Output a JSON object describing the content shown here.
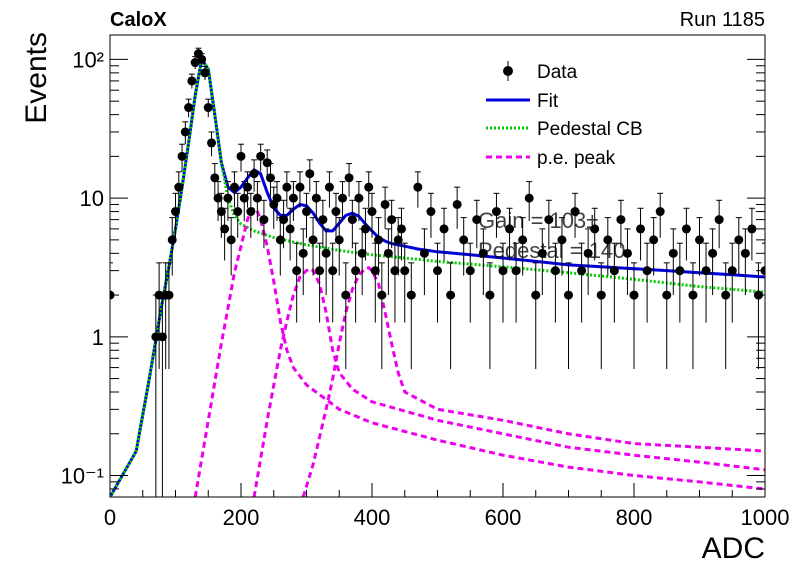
{
  "header": {
    "experiment": "CaloX",
    "run": "Run 1185"
  },
  "chart_data": {
    "type": "scatter",
    "xlabel": "ADC",
    "ylabel": "Events",
    "xlim": [
      0,
      1000
    ],
    "ylim": [
      0.07,
      150
    ],
    "y_scale": "log",
    "grid": false,
    "legend_position": "top-right",
    "x_ticks": [
      0,
      200,
      400,
      600,
      800,
      1000
    ],
    "y_ticks": [
      {
        "value": 0.1,
        "label": "10⁻¹"
      },
      {
        "value": 1,
        "label": "1"
      },
      {
        "value": 10,
        "label": "10"
      },
      {
        "value": 100,
        "label": "10²"
      }
    ],
    "legend": [
      {
        "label": "Data",
        "style": "marker",
        "color": "#000000"
      },
      {
        "label": "Fit",
        "style": "solid",
        "color": "#0000dd"
      },
      {
        "label": "Pedestal CB",
        "style": "dotted",
        "color": "#00cc00"
      },
      {
        "label": "p.e. peak",
        "style": "dashed",
        "color": "#ee00ee"
      }
    ],
    "fit_text": [
      "Gain = 103±",
      "Pedestal = 140"
    ],
    "series": [
      {
        "name": "Data",
        "type": "scatter",
        "color": "#000000",
        "x": [
          0,
          70,
          75,
          80,
          85,
          90,
          95,
          100,
          105,
          110,
          115,
          120,
          125,
          130,
          135,
          140,
          145,
          150,
          155,
          160,
          165,
          170,
          175,
          180,
          185,
          190,
          195,
          200,
          205,
          210,
          215,
          220,
          225,
          230,
          235,
          240,
          245,
          250,
          255,
          260,
          265,
          270,
          275,
          280,
          285,
          290,
          295,
          300,
          305,
          310,
          315,
          320,
          325,
          330,
          335,
          340,
          345,
          350,
          355,
          360,
          365,
          370,
          375,
          380,
          385,
          390,
          395,
          400,
          405,
          410,
          415,
          420,
          425,
          430,
          435,
          440,
          445,
          450,
          460,
          470,
          480,
          490,
          500,
          510,
          520,
          530,
          540,
          550,
          560,
          570,
          580,
          590,
          600,
          610,
          620,
          630,
          640,
          650,
          660,
          670,
          680,
          690,
          700,
          710,
          720,
          730,
          740,
          750,
          760,
          770,
          780,
          790,
          800,
          810,
          820,
          830,
          840,
          850,
          860,
          870,
          880,
          890,
          900,
          910,
          920,
          930,
          940,
          950,
          960,
          970,
          980,
          990,
          1000
        ],
        "y": [
          2,
          1,
          2,
          1,
          2,
          2,
          5,
          8,
          12,
          20,
          30,
          45,
          70,
          95,
          110,
          100,
          80,
          45,
          25,
          14,
          10,
          8,
          6,
          10,
          5,
          12,
          8,
          20,
          10,
          12,
          8,
          15,
          10,
          20,
          7,
          18,
          14,
          9,
          10,
          5,
          7,
          12,
          6,
          10,
          3,
          12,
          4,
          8,
          15,
          5,
          10,
          3,
          7,
          4,
          12,
          3,
          8,
          5,
          10,
          2,
          14,
          7,
          3,
          10,
          4,
          6,
          12,
          8,
          3,
          5,
          2,
          9,
          4,
          7,
          3,
          5,
          6,
          3,
          2,
          12,
          4,
          8,
          3,
          6,
          2,
          9,
          5,
          3,
          7,
          4,
          2,
          8,
          3,
          6,
          3,
          5,
          10,
          2,
          4,
          7,
          3,
          5,
          2,
          8,
          3,
          4,
          6,
          2,
          5,
          3,
          7,
          4,
          2,
          6,
          3,
          5,
          8,
          2,
          4,
          3,
          6,
          2,
          5,
          3,
          4,
          7,
          2,
          3,
          5,
          4,
          6,
          2,
          3
        ]
      },
      {
        "name": "Fit",
        "type": "line",
        "color": "#0000dd",
        "x": [
          0,
          40,
          60,
          80,
          90,
          100,
          110,
          120,
          130,
          140,
          150,
          160,
          170,
          180,
          190,
          200,
          210,
          220,
          230,
          240,
          250,
          260,
          270,
          280,
          290,
          300,
          310,
          320,
          330,
          340,
          350,
          360,
          370,
          380,
          390,
          400,
          410,
          420,
          430,
          440,
          450,
          470,
          500,
          550,
          600,
          650,
          700,
          750,
          800,
          850,
          900,
          950,
          1000
        ],
        "y": [
          0.07,
          0.15,
          0.5,
          1.8,
          3.2,
          6,
          12,
          25,
          55,
          100,
          85,
          40,
          18,
          12,
          11,
          12,
          14,
          16,
          15,
          11,
          8.5,
          7.5,
          7.5,
          8.3,
          9.0,
          8.8,
          7.8,
          6.6,
          5.8,
          5.8,
          6.6,
          7.5,
          7.8,
          7.4,
          6.5,
          5.8,
          5.2,
          4.9,
          4.7,
          4.6,
          4.5,
          4.3,
          4.1,
          3.9,
          3.7,
          3.5,
          3.3,
          3.2,
          3.1,
          3.0,
          2.9,
          2.8,
          2.7
        ]
      },
      {
        "name": "Pedestal CB",
        "type": "line",
        "color": "#00cc00",
        "x": [
          0,
          40,
          60,
          80,
          90,
          100,
          110,
          120,
          130,
          140,
          150,
          160,
          170,
          180,
          190,
          200,
          220,
          250,
          300,
          350,
          400,
          450,
          500,
          600,
          700,
          800,
          900,
          1000
        ],
        "y": [
          0.07,
          0.15,
          0.5,
          1.8,
          3.2,
          6,
          12,
          25,
          55,
          100,
          85,
          40,
          18,
          10,
          7.5,
          6.5,
          5.8,
          5.2,
          4.6,
          4.2,
          3.9,
          3.7,
          3.5,
          3.2,
          2.9,
          2.6,
          2.3,
          2.1
        ]
      },
      {
        "name": "p.e. peak 1",
        "type": "line",
        "color": "#ee00ee",
        "x": [
          130,
          150,
          170,
          180,
          190,
          200,
          210,
          215,
          220,
          225,
          230,
          240,
          250,
          260,
          270,
          280,
          300,
          350,
          400,
          500,
          600,
          700,
          800,
          900,
          1000
        ],
        "y": [
          0.07,
          0.25,
          0.9,
          1.6,
          2.9,
          4.5,
          7,
          8,
          8.5,
          8,
          7,
          4.5,
          2.5,
          1.3,
          0.8,
          0.6,
          0.45,
          0.3,
          0.24,
          0.18,
          0.14,
          0.115,
          0.1,
          0.09,
          0.08
        ]
      },
      {
        "name": "p.e. peak 2",
        "type": "line",
        "color": "#ee00ee",
        "x": [
          220,
          240,
          260,
          270,
          280,
          290,
          300,
          305,
          310,
          320,
          330,
          340,
          350,
          370,
          400,
          500,
          600,
          700,
          800,
          900,
          1000
        ],
        "y": [
          0.07,
          0.25,
          0.8,
          1.3,
          2.0,
          2.7,
          3.0,
          3.1,
          3.0,
          2.4,
          1.5,
          0.8,
          0.55,
          0.42,
          0.34,
          0.25,
          0.2,
          0.16,
          0.14,
          0.125,
          0.11
        ]
      },
      {
        "name": "p.e. peak 3",
        "type": "line",
        "color": "#ee00ee",
        "x": [
          295,
          310,
          330,
          340,
          350,
          360,
          370,
          380,
          390,
          395,
          400,
          410,
          420,
          430,
          440,
          450,
          500,
          600,
          700,
          800,
          900,
          1000
        ],
        "y": [
          0.07,
          0.12,
          0.3,
          0.5,
          0.9,
          1.5,
          2.2,
          2.8,
          3.1,
          3.15,
          3.0,
          2.4,
          1.5,
          0.9,
          0.55,
          0.4,
          0.3,
          0.25,
          0.2,
          0.17,
          0.16,
          0.15
        ]
      }
    ]
  }
}
